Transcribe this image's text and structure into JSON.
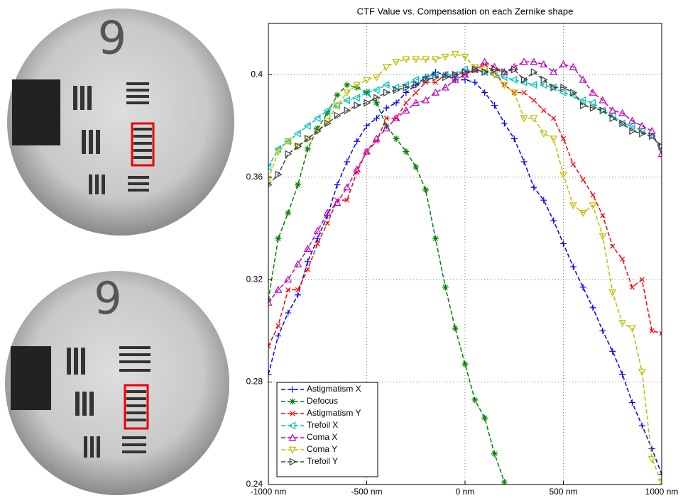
{
  "images": [
    {
      "label": "9"
    },
    {
      "label": "9"
    }
  ],
  "chart_data": {
    "type": "line",
    "title": "CTF Value vs. Compensation on each Zernike shape",
    "x": [
      -1000,
      -950,
      -900,
      -850,
      -800,
      -750,
      -700,
      -650,
      -600,
      -550,
      -500,
      -450,
      -400,
      -350,
      -300,
      -250,
      -200,
      -150,
      -100,
      -50,
      0,
      50,
      100,
      150,
      200,
      250,
      300,
      350,
      400,
      450,
      500,
      550,
      600,
      650,
      700,
      750,
      800,
      850,
      900,
      950,
      1000
    ],
    "xlim": [
      -1000,
      1000
    ],
    "xticks": [
      {
        "value": -1000,
        "label": "-1000 nm"
      },
      {
        "value": -500,
        "label": "-500 nm"
      },
      {
        "value": 0,
        "label": "0 nm"
      },
      {
        "value": 500,
        "label": "500 nm"
      },
      {
        "value": 1000,
        "label": "1000 nm"
      }
    ],
    "ylim": [
      0.24,
      0.42
    ],
    "yticks": [
      0.24,
      0.28,
      0.32,
      0.36,
      0.4
    ],
    "grid": true,
    "legend": "lower left",
    "series": [
      {
        "name": "Astigmatism X",
        "color": "#0000ff",
        "marker": "plus",
        "values": [
          0.283,
          0.298,
          0.307,
          0.314,
          0.327,
          0.336,
          0.345,
          0.357,
          0.366,
          0.374,
          0.38,
          0.383,
          0.387,
          0.389,
          0.393,
          0.396,
          0.399,
          0.401,
          0.4,
          0.398,
          0.398,
          0.397,
          0.393,
          0.388,
          0.381,
          0.375,
          0.366,
          0.356,
          0.351,
          0.343,
          0.334,
          0.325,
          0.317,
          0.309,
          0.3,
          0.292,
          0.283,
          0.272,
          0.263,
          0.254,
          0.244
        ]
      },
      {
        "name": "Defocus",
        "color": "#008000",
        "marker": "star",
        "values": [
          0.312,
          0.336,
          0.346,
          0.357,
          0.371,
          0.379,
          0.385,
          0.392,
          0.396,
          0.395,
          0.393,
          0.389,
          0.38,
          0.375,
          0.37,
          0.364,
          0.355,
          0.336,
          0.317,
          0.301,
          0.287,
          0.273,
          0.266,
          0.252,
          0.241,
          null,
          null,
          null,
          null,
          null,
          null,
          null,
          null,
          null,
          null,
          null,
          null,
          null,
          null,
          null,
          null
        ]
      },
      {
        "name": "Astigmatism Y",
        "color": "#ff0000",
        "marker": "x",
        "values": [
          0.294,
          0.302,
          0.316,
          0.316,
          0.324,
          0.334,
          0.342,
          0.351,
          0.351,
          0.362,
          0.37,
          0.374,
          0.383,
          0.383,
          0.389,
          0.393,
          0.397,
          0.397,
          0.4,
          0.4,
          0.4,
          0.402,
          0.404,
          0.401,
          0.396,
          0.393,
          0.393,
          0.39,
          0.386,
          0.383,
          0.375,
          0.365,
          0.359,
          0.353,
          0.345,
          0.333,
          0.328,
          0.317,
          0.32,
          0.3,
          0.299
        ]
      },
      {
        "name": "Trefoil X",
        "color": "#00bfbf",
        "marker": "tri-left",
        "values": [
          0.364,
          0.371,
          0.374,
          0.377,
          0.38,
          0.383,
          0.386,
          0.388,
          0.39,
          0.391,
          0.393,
          0.394,
          0.396,
          0.395,
          0.396,
          0.398,
          0.399,
          0.4,
          0.4,
          0.4,
          0.402,
          0.402,
          0.401,
          0.4,
          0.399,
          0.398,
          0.397,
          0.396,
          0.396,
          0.395,
          0.393,
          0.392,
          0.39,
          0.389,
          0.386,
          0.384,
          0.381,
          0.38,
          0.378,
          0.376,
          0.371
        ]
      },
      {
        "name": "Coma X",
        "color": "#bf00bf",
        "marker": "tri-up",
        "values": [
          0.311,
          0.316,
          0.32,
          0.326,
          0.332,
          0.339,
          0.346,
          0.35,
          0.356,
          0.363,
          0.37,
          0.375,
          0.379,
          0.383,
          0.386,
          0.389,
          0.39,
          0.393,
          0.395,
          0.398,
          0.4,
          0.402,
          0.405,
          0.403,
          0.401,
          0.403,
          0.405,
          0.405,
          0.404,
          0.401,
          0.404,
          0.403,
          0.398,
          0.393,
          0.39,
          0.386,
          0.385,
          0.382,
          0.38,
          0.378,
          0.369
        ]
      },
      {
        "name": "Coma Y",
        "color": "#bfbf00",
        "marker": "tri-down",
        "values": [
          0.359,
          0.37,
          0.374,
          0.372,
          0.375,
          0.378,
          0.382,
          0.388,
          0.393,
          0.396,
          0.398,
          0.399,
          0.403,
          0.405,
          0.406,
          0.406,
          0.406,
          0.406,
          0.407,
          0.408,
          0.407,
          0.403,
          0.402,
          0.4,
          0.396,
          0.393,
          0.383,
          0.383,
          0.377,
          0.375,
          0.361,
          0.349,
          0.346,
          0.349,
          0.337,
          0.315,
          0.303,
          0.301,
          0.284,
          0.25,
          0.241
        ]
      },
      {
        "name": "Trefoil Y",
        "color": "#404040",
        "marker": "tri-right",
        "values": [
          0.357,
          0.361,
          0.369,
          0.372,
          0.375,
          0.378,
          0.381,
          0.384,
          0.386,
          0.388,
          0.389,
          0.391,
          0.393,
          0.394,
          0.395,
          0.396,
          0.398,
          0.399,
          0.399,
          0.4,
          0.401,
          0.402,
          0.401,
          0.402,
          0.401,
          0.402,
          0.398,
          0.401,
          0.398,
          0.395,
          0.395,
          0.393,
          0.388,
          0.387,
          0.386,
          0.383,
          0.381,
          0.378,
          0.377,
          0.376,
          0.372
        ]
      }
    ]
  }
}
